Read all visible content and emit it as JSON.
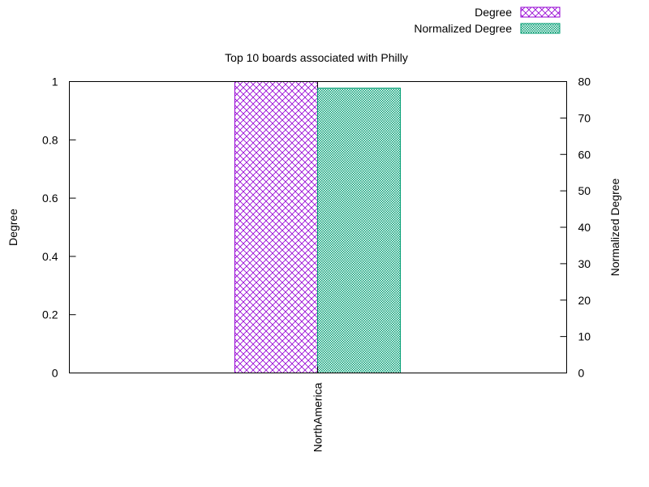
{
  "chart_data": {
    "type": "bar",
    "title": "Top 10 boards associated with Philly",
    "categories": [
      "NorthAmerica"
    ],
    "series": [
      {
        "name": "Degree",
        "axis": "left",
        "values": [
          1.0
        ],
        "color": "#9400d3",
        "pattern": "crosshatch"
      },
      {
        "name": "Normalized Degree",
        "axis": "right",
        "values": [
          78.2
        ],
        "color": "#009e73",
        "pattern": "dense-checker"
      }
    ],
    "ylabel": "Degree",
    "y2label": "Normalized Degree",
    "ylim": [
      0,
      1
    ],
    "y2lim": [
      0,
      80
    ],
    "yticks": [
      "0",
      "0.2",
      "0.4",
      "0.6",
      "0.8",
      "1"
    ],
    "y2ticks": [
      "0",
      "10",
      "20",
      "30",
      "40",
      "50",
      "60",
      "70",
      "80"
    ],
    "legend_position": "top-right",
    "grid": false
  }
}
